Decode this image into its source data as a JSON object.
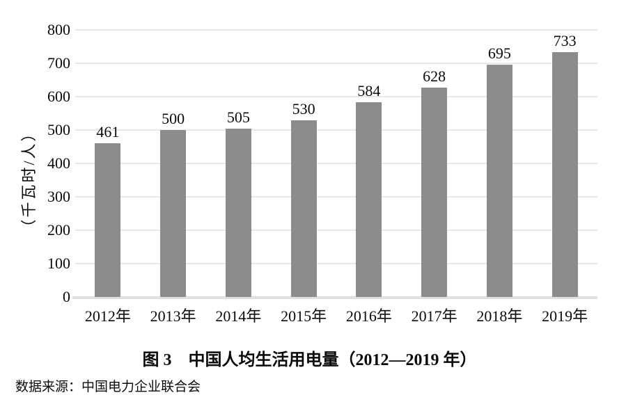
{
  "figure": {
    "title": "图 3　中国人均生活用电量（2012—2019 年）",
    "source_note": "数据来源：中国电力企业联合会"
  },
  "chart_data": {
    "type": "bar",
    "title": "图 3　中国人均生活用电量（2012—2019 年）",
    "source_note": "数据来源：中国电力企业联合会",
    "categories": [
      "2012年",
      "2013年",
      "2014年",
      "2015年",
      "2016年",
      "2017年",
      "2018年",
      "2019年"
    ],
    "values": [
      461,
      500,
      505,
      530,
      584,
      628,
      695,
      733
    ],
    "xlabel": "",
    "ylabel": "（千瓦时/人）",
    "ylim": [
      0,
      800
    ],
    "yticks": [
      0,
      100,
      200,
      300,
      400,
      500,
      600,
      700,
      800
    ],
    "grid": true,
    "legend_position": "none",
    "bar_color": "#8c8c8c",
    "gridline_color": "#e8e8e8",
    "axis_line_color": "#e0e0e0",
    "text_color": "#0a0a0a",
    "background_color": "#ffffff"
  }
}
